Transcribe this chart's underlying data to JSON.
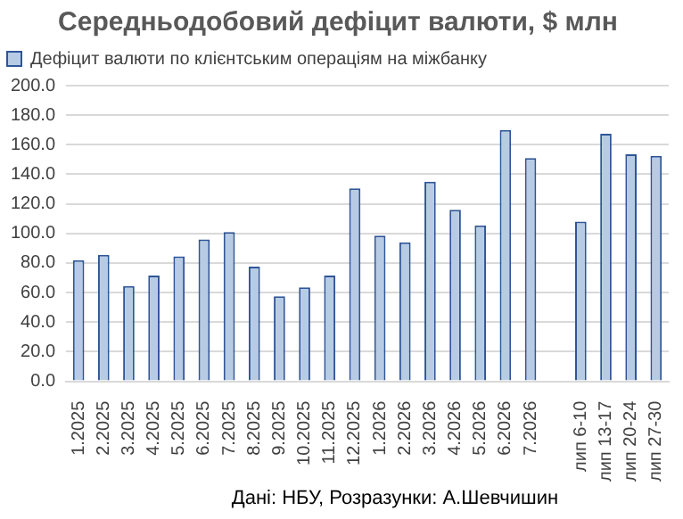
{
  "chart_data": {
    "type": "bar",
    "title": "Середньодобовий дефіцит валюти, $ млн",
    "categories": [
      "1.2025",
      "2.2025",
      "3.2025",
      "4.2025",
      "5.2025",
      "6.2025",
      "7.2025",
      "8.2025",
      "9.2025",
      "10.2025",
      "11.2025",
      "12.2025",
      "1.2026",
      "2.2026",
      "3.2026",
      "4.2026",
      "5.2026",
      "6.2026",
      "7.2026",
      null,
      "лип 6-10",
      "лип 13-17",
      "лип 20-24",
      "лип 27-30"
    ],
    "series": [
      {
        "name": "Дефіцит валюти по клієнтським операціям на міжбанку",
        "color": "#b7cce4",
        "values": [
          82,
          85.5,
          64.5,
          71.5,
          84.5,
          96,
          101,
          77.5,
          57.5,
          63.5,
          71.5,
          130.5,
          98.5,
          94,
          135,
          116,
          105.5,
          170,
          151,
          null,
          108,
          167.5,
          153.5,
          152.5
        ]
      }
    ],
    "ylim": [
      0,
      200
    ],
    "yticks": [
      {
        "value": 0,
        "label": "0.0"
      },
      {
        "value": 20,
        "label": "20.0"
      },
      {
        "value": 40,
        "label": "40.0"
      },
      {
        "value": 60,
        "label": "60.0"
      },
      {
        "value": 80,
        "label": "80.0"
      },
      {
        "value": 100,
        "label": "100.0"
      },
      {
        "value": 120,
        "label": "120.0"
      },
      {
        "value": 140,
        "label": "140.0"
      },
      {
        "value": 160,
        "label": "160.0"
      },
      {
        "value": 180,
        "label": "180.0"
      },
      {
        "value": 200,
        "label": "200.0"
      }
    ],
    "grid": "y",
    "legend": "top",
    "annotations": [
      "Дані: НБУ, Розразунки: А.Шевчишин"
    ]
  }
}
